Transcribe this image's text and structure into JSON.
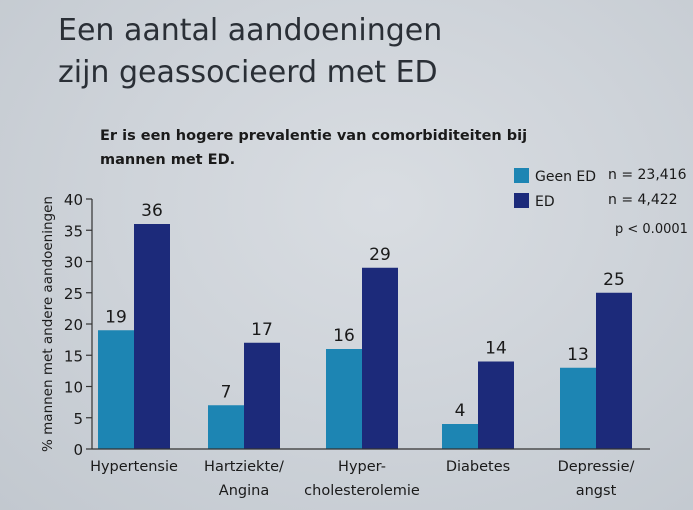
{
  "title": [
    "Een aantal aandoeningen",
    "zijn geassocieerd met ED"
  ],
  "chart_data": {
    "type": "bar",
    "subtitle": [
      "Er is een hogere prevalentie van comorbiditeiten bij",
      "mannen met ED."
    ],
    "ylabel": "% mannen met andere aandoeningen",
    "ylim": [
      0,
      40
    ],
    "yticks": [
      "0",
      "5",
      "10",
      "15",
      "20",
      "25",
      "30",
      "35",
      "40"
    ],
    "categories": [
      [
        "Hypertensie"
      ],
      [
        "Hartziekte/",
        "Angina"
      ],
      [
        "Hyper-",
        "cholesterolemie"
      ],
      [
        "Diabetes"
      ],
      [
        "Depressie/",
        "angst"
      ]
    ],
    "series": [
      {
        "name": "Geen ED",
        "n_label": "n = 23,416",
        "color": "#1d85b3",
        "values": [
          19,
          7,
          16,
          4,
          13
        ],
        "labels": [
          "19",
          "7",
          "16",
          "4",
          "13"
        ]
      },
      {
        "name": "ED",
        "n_label": "n = 4,422",
        "color": "#1c2a7a",
        "values": [
          36,
          17,
          29,
          14,
          25
        ],
        "labels": [
          "36",
          "17",
          "29",
          "14",
          "25"
        ]
      }
    ],
    "p_value": "p < 0.0001",
    "legend_position": "top-right",
    "grid": false
  }
}
